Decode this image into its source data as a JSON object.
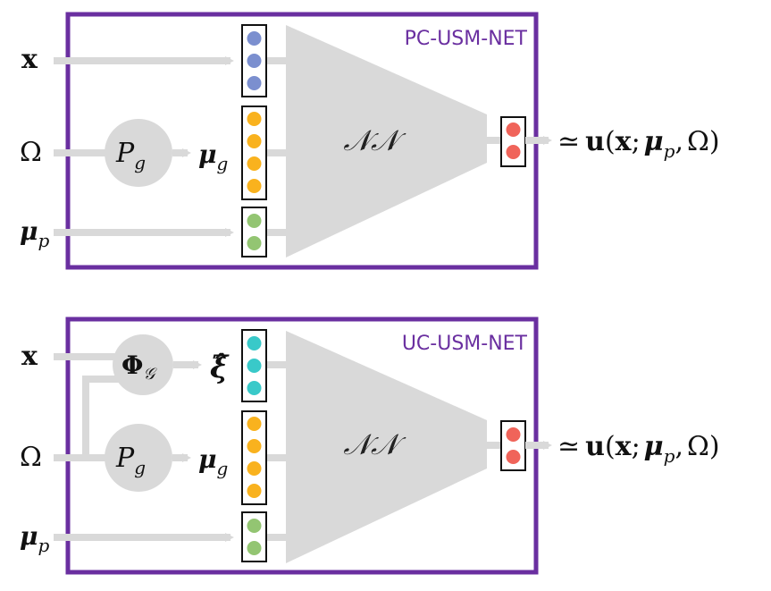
{
  "colors": {
    "frame": "#6a2fa0",
    "arrow": "#d9d9d9",
    "node": "#d9d9d9",
    "blue": "#7b8fcf",
    "orange": "#f9b21e",
    "green": "#93c572",
    "cyan": "#39c9c9",
    "red": "#f0645a"
  },
  "panels": [
    {
      "title": "PC-USM-NET",
      "inputs": {
        "x": "x",
        "omega": "Ω",
        "mu_p_base": "μ",
        "mu_p_sub": "p"
      },
      "pg": {
        "base": "P",
        "sub": "g"
      },
      "mu_g": {
        "base": "μ",
        "sub": "g"
      },
      "network": "𝒩𝒩",
      "output": {
        "approx": "≃",
        "u": "u",
        "open": "(",
        "x": "x",
        "semi": ";",
        "mu": "μ",
        "sub": "p",
        "comma": ",",
        "omega": "Ω",
        "close": ")"
      },
      "vectors": {
        "first": "blue",
        "first_count": 3,
        "mu_g_count": 4,
        "mu_p_count": 2,
        "out_count": 2
      }
    },
    {
      "title": "UC-USM-NET",
      "inputs": {
        "x": "x",
        "omega": "Ω",
        "mu_p_base": "μ",
        "mu_p_sub": "p"
      },
      "phi": {
        "base": "Φ",
        "sub": "𝒢"
      },
      "xi": "ξ̂",
      "pg": {
        "base": "P",
        "sub": "g"
      },
      "mu_g": {
        "base": "μ",
        "sub": "g"
      },
      "network": "𝒩𝒩",
      "output": {
        "approx": "≃",
        "u": "u",
        "open": "(",
        "x": "x",
        "semi": ";",
        "mu": "μ",
        "sub": "p",
        "comma": ",",
        "omega": "Ω",
        "close": ")"
      },
      "vectors": {
        "first": "cyan",
        "first_count": 3,
        "mu_g_count": 4,
        "mu_p_count": 2,
        "out_count": 2
      }
    }
  ]
}
